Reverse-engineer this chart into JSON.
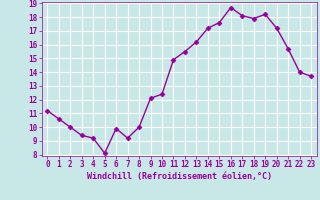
{
  "x": [
    0,
    1,
    2,
    3,
    4,
    5,
    6,
    7,
    8,
    9,
    10,
    11,
    12,
    13,
    14,
    15,
    16,
    17,
    18,
    19,
    20,
    21,
    22,
    23
  ],
  "y": [
    11.2,
    10.6,
    10.0,
    9.4,
    9.2,
    8.1,
    9.9,
    9.2,
    10.0,
    12.1,
    12.4,
    14.9,
    15.5,
    16.2,
    17.2,
    17.6,
    18.7,
    18.1,
    17.9,
    18.2,
    17.2,
    15.7,
    14.0,
    13.7
  ],
  "line_color": "#990099",
  "marker": "D",
  "markersize": 2.5,
  "bg_color": "#c8e8e8",
  "grid_color": "#ffffff",
  "xlabel": "Windchill (Refroidissement éolien,°C)",
  "tick_color": "#990099",
  "ylim": [
    8,
    19
  ],
  "xlim": [
    -0.5,
    23.5
  ],
  "yticks": [
    8,
    9,
    10,
    11,
    12,
    13,
    14,
    15,
    16,
    17,
    18,
    19
  ],
  "xticks": [
    0,
    1,
    2,
    3,
    4,
    5,
    6,
    7,
    8,
    9,
    10,
    11,
    12,
    13,
    14,
    15,
    16,
    17,
    18,
    19,
    20,
    21,
    22,
    23
  ],
  "linewidth": 1.0,
  "tick_fontsize": 5.5,
  "xlabel_fontsize": 6.0
}
